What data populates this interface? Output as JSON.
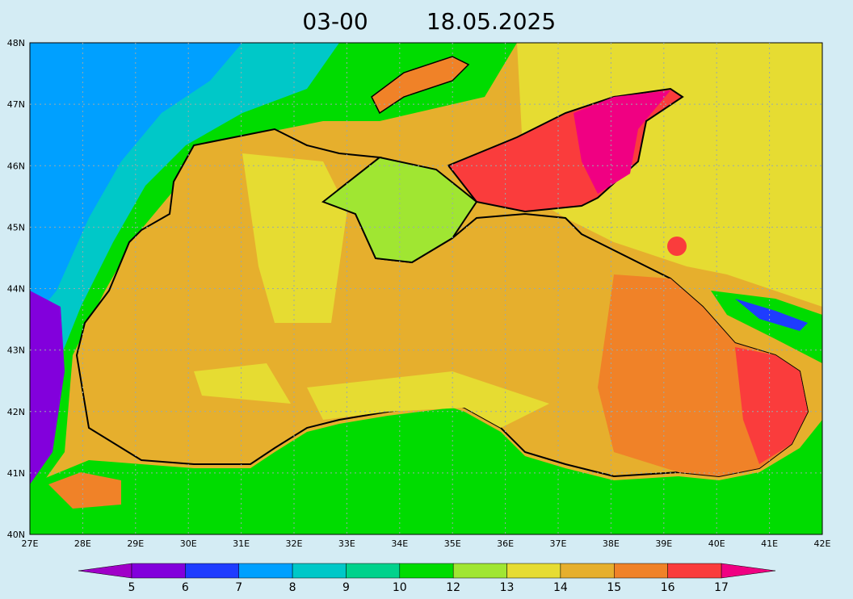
{
  "title": {
    "time": "03-00",
    "date": "18.05.2025"
  },
  "map": {
    "lat_labels": [
      "48N",
      "47N",
      "46N",
      "45N",
      "44N",
      "43N",
      "42N",
      "41N",
      "40N"
    ],
    "lon_labels": [
      "27E",
      "28E",
      "29E",
      "30E",
      "31E",
      "32E",
      "33E",
      "34E",
      "35E",
      "36E",
      "37E",
      "38E",
      "39E",
      "40E",
      "41E",
      "42E"
    ]
  },
  "colorbar": {
    "below_color": "#a000c8",
    "above_color": "#f00082",
    "colors": [
      "#8200dc",
      "#1e3cff",
      "#00a0ff",
      "#00c8c8",
      "#00d28c",
      "#00dc00",
      "#a0e632",
      "#e6dc32",
      "#e6af2d",
      "#f08228",
      "#fa3c3c"
    ],
    "labels": [
      5,
      6,
      7,
      8,
      9,
      10,
      12,
      13,
      14,
      15,
      16,
      17
    ]
  }
}
